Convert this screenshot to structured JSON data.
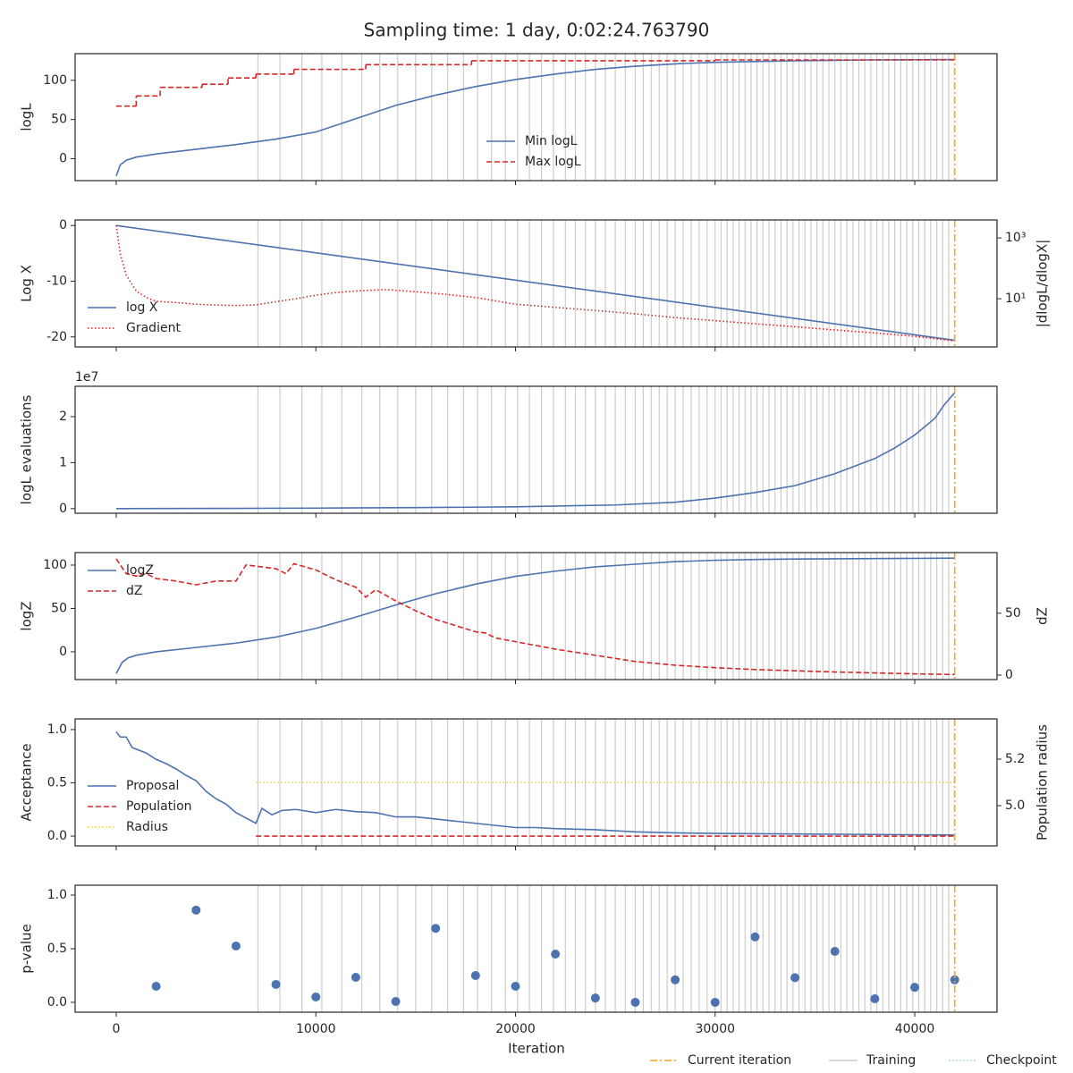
{
  "figure": {
    "title": "Sampling time: 1 day, 0:02:24.763790",
    "xlabel": "Iteration",
    "xlim": [
      -2060,
      44120
    ],
    "xticks": [
      0,
      10000,
      20000,
      30000,
      40000
    ],
    "current": {
      "name": "Current iteration",
      "color": "#ff9f1c",
      "x": 42000
    },
    "training": {
      "name": "Training",
      "color": "#cccccc",
      "x": [
        7100,
        8200,
        9300,
        10300,
        11300,
        12300,
        13200,
        14100,
        15000,
        15800,
        16600,
        17400,
        18100,
        18800,
        19500,
        20100,
        20700,
        21300,
        21900,
        22500,
        23000,
        23500,
        24000,
        24500,
        25000,
        25500,
        26000,
        26400,
        26800,
        27200,
        27600,
        28000,
        28400,
        28800,
        29200,
        29600,
        30000,
        30300,
        30600,
        30900,
        31200,
        31500,
        31800,
        32100,
        32400,
        32700,
        33000,
        33300,
        33600,
        33900,
        34200,
        34500,
        34800,
        35100,
        35400,
        35700,
        36000,
        36300,
        36600,
        36900,
        37200,
        37500,
        37800,
        38100,
        38400,
        38700,
        39000,
        39300,
        39600,
        39900,
        40200,
        40500,
        40800,
        41100,
        41400,
        41700
      ]
    },
    "checkpoint": {
      "name": "Checkpoint",
      "color": "#87ceeb"
    }
  },
  "chart_data": [
    {
      "type": "line",
      "ylabel": "logL",
      "ylim": [
        -28,
        134
      ],
      "yticks": [
        0,
        50,
        100
      ],
      "legend_loc": "lower center",
      "series": [
        {
          "name": "Min logL",
          "color": "#4c72b0",
          "style": "solid",
          "x": [
            0,
            200,
            500,
            1000,
            2000,
            4000,
            6000,
            8000,
            10000,
            12000,
            14000,
            16000,
            18000,
            20000,
            22000,
            24000,
            26000,
            28000,
            30000,
            32000,
            34000,
            36000,
            38000,
            40000,
            42000
          ],
          "values": [
            -22,
            -8,
            -2,
            2,
            6,
            12,
            18,
            25,
            34,
            51,
            68,
            81,
            92,
            101,
            108,
            114,
            118,
            121,
            123,
            124,
            125,
            125.5,
            126,
            126.3,
            126.5
          ]
        },
        {
          "name": "Max logL",
          "color": "#d62728",
          "style": "dashed",
          "drawstyle": "steps-post",
          "x": [
            0,
            1000,
            2200,
            4300,
            5600,
            7000,
            8900,
            12500,
            17800,
            30000,
            42000
          ],
          "values": [
            67,
            80,
            91,
            95,
            103,
            108,
            114,
            120,
            125,
            126,
            127
          ]
        }
      ]
    },
    {
      "type": "line",
      "ylabel": "Log X",
      "ylim": [
        -21.8,
        1
      ],
      "yticks": [
        -20,
        -10,
        0
      ],
      "legend_loc": "lower left",
      "y2label": "|dlogL/dlogX|",
      "y2log": true,
      "y2lim": [
        0.26,
        3900
      ],
      "y2ticks": [
        {
          "value": 10,
          "label": "10¹"
        },
        {
          "value": 1000,
          "label": "10³"
        }
      ],
      "series": [
        {
          "name": "log X",
          "color": "#4c72b0",
          "style": "solid",
          "x": [
            0,
            42000
          ],
          "values": [
            0,
            -20.6
          ]
        },
        {
          "name": "Gradient",
          "color": "#d62728",
          "style": "dotted",
          "axis": "y2",
          "x": [
            0,
            200,
            500,
            1000,
            1500,
            2000,
            3000,
            4000,
            5000,
            6000,
            7000,
            8000,
            9000,
            10000,
            11000,
            12000,
            13500,
            15000,
            16500,
            18000,
            20000,
            22000,
            24000,
            26000,
            28000,
            30000,
            32000,
            34000,
            36000,
            38000,
            40000,
            42000
          ],
          "values": [
            2600,
            300,
            60,
            18,
            11,
            8.2,
            7.5,
            6.6,
            6.2,
            6,
            6.3,
            8,
            10,
            13,
            16,
            18,
            20,
            17,
            14,
            11,
            6.6,
            5.2,
            4.1,
            3.2,
            2.4,
            1.9,
            1.5,
            1.2,
            0.94,
            0.75,
            0.58,
            0.41
          ]
        }
      ]
    },
    {
      "type": "line",
      "ylabel": "logL evaluations",
      "offset_label": "1e7",
      "ylim": [
        -1000000,
        26600000
      ],
      "yticks": [
        0,
        {
          "value": 10000000,
          "label": "1"
        },
        {
          "value": 20000000,
          "label": "2"
        }
      ],
      "series": [
        {
          "name": "logL evaluations",
          "color": "#4c72b0",
          "style": "solid",
          "x": [
            0,
            5000,
            10000,
            15000,
            20000,
            25000,
            28000,
            30000,
            32000,
            34000,
            36000,
            38000,
            39000,
            40000,
            41000,
            41500,
            42000
          ],
          "values": [
            0,
            50000,
            120000,
            220000,
            400000,
            800000,
            1400000,
            2300000,
            3500000,
            5000000,
            7600000,
            10900000,
            13200000,
            16000000,
            19600000,
            22700000,
            25200000
          ]
        }
      ]
    },
    {
      "type": "line",
      "ylabel": "logZ",
      "ylim": [
        -32,
        114.4
      ],
      "yticks": [
        0,
        50,
        100
      ],
      "legend_loc": "upper left",
      "y2label": "dZ",
      "y2lim": [
        -3.6,
        99
      ],
      "y2ticks": [
        0,
        50
      ],
      "series": [
        {
          "name": "logZ",
          "color": "#4c72b0",
          "style": "solid",
          "x": [
            0,
            300,
            600,
            1000,
            2000,
            4000,
            6000,
            8000,
            10000,
            12000,
            14000,
            16000,
            18000,
            20000,
            22000,
            24000,
            26000,
            28000,
            30000,
            32000,
            34000,
            38000,
            42000
          ],
          "values": [
            -25,
            -12,
            -7,
            -4,
            0,
            5,
            10,
            17,
            27,
            40,
            54,
            67,
            78,
            87,
            93,
            98,
            101,
            104,
            105.5,
            106.5,
            107,
            107.5,
            108
          ]
        },
        {
          "name": "dZ",
          "color": "#d62728",
          "style": "dashed",
          "axis": "y2",
          "x": [
            0,
            500,
            1000,
            1500,
            2000,
            3000,
            4000,
            5000,
            6000,
            6500,
            7000,
            8000,
            8500,
            8900,
            10000,
            11000,
            12000,
            12500,
            13000,
            14000,
            15000,
            16000,
            17000,
            18000,
            18500,
            19000,
            20000,
            22000,
            24000,
            26000,
            28000,
            30000,
            32000,
            34000,
            36000,
            38000,
            40000,
            42000
          ],
          "values": [
            94,
            82,
            80,
            82,
            78,
            76,
            73,
            76,
            76,
            89,
            88,
            86,
            82,
            90,
            85,
            77,
            71,
            63,
            69,
            60,
            52,
            45,
            40,
            35,
            34,
            30,
            27,
            21,
            16,
            11,
            8,
            6,
            4.5,
            3.5,
            2.5,
            1.8,
            1,
            0.5
          ]
        }
      ]
    },
    {
      "type": "line",
      "ylabel": "Acceptance",
      "ylim": [
        -0.092,
        1.1
      ],
      "yticks": [
        {
          "value": 0,
          "label": "0.0"
        },
        0.5,
        {
          "value": 1,
          "label": "1.0"
        }
      ],
      "legend_loc": "lower left",
      "y2label": "Population radius",
      "y2lim": [
        4.827,
        5.373
      ],
      "y2ticks": [
        {
          "value": 5,
          "label": "5.0"
        },
        5.2
      ],
      "series": [
        {
          "name": "Proposal",
          "color": "#4c72b0",
          "style": "solid",
          "x": [
            0,
            200,
            500,
            800,
            1500,
            2000,
            2500,
            3000,
            3500,
            4000,
            4500,
            5000,
            5500,
            6000,
            6500,
            7000,
            7300,
            7800,
            8300,
            9000,
            10000,
            11000,
            12000,
            13000,
            14000,
            15000,
            16000,
            17000,
            18000,
            19000,
            20000,
            21000,
            22000,
            24000,
            26000,
            28000,
            30000,
            34000,
            38000,
            42000
          ],
          "values": [
            0.98,
            0.93,
            0.93,
            0.83,
            0.78,
            0.72,
            0.68,
            0.63,
            0.57,
            0.52,
            0.42,
            0.35,
            0.3,
            0.22,
            0.17,
            0.12,
            0.26,
            0.2,
            0.24,
            0.25,
            0.22,
            0.25,
            0.23,
            0.22,
            0.18,
            0.18,
            0.16,
            0.14,
            0.12,
            0.1,
            0.08,
            0.08,
            0.07,
            0.06,
            0.04,
            0.03,
            0.025,
            0.02,
            0.015,
            0.01
          ]
        },
        {
          "name": "Population",
          "color": "#d62728",
          "style": "dashed",
          "x": [
            7000,
            42000
          ],
          "values": [
            0,
            0
          ]
        },
        {
          "name": "Radius",
          "color": "#f2cf3a",
          "style": "dotted",
          "axis": "y2",
          "x": [
            7000,
            42000
          ],
          "values": [
            5.1,
            5.1
          ]
        }
      ]
    },
    {
      "type": "scatter",
      "ylabel": "p-value",
      "ylim": [
        -0.092,
        1.092
      ],
      "yticks": [
        {
          "value": 0,
          "label": "0.0"
        },
        0.5,
        {
          "value": 1,
          "label": "1.0"
        }
      ],
      "color": "#4c72b0",
      "x": [
        2000,
        4000,
        6000,
        8000,
        10000,
        12000,
        14000,
        16000,
        18000,
        20000,
        22000,
        24000,
        26000,
        28000,
        30000,
        32000,
        34000,
        36000,
        38000,
        40000,
        42000
      ],
      "values": [
        0.15,
        0.86,
        0.525,
        0.167,
        0.05,
        0.233,
        0.008,
        0.69,
        0.25,
        0.15,
        0.45,
        0.04,
        0.0,
        0.21,
        0.0,
        0.61,
        0.23,
        0.475,
        0.033,
        0.14,
        0.21
      ]
    }
  ]
}
